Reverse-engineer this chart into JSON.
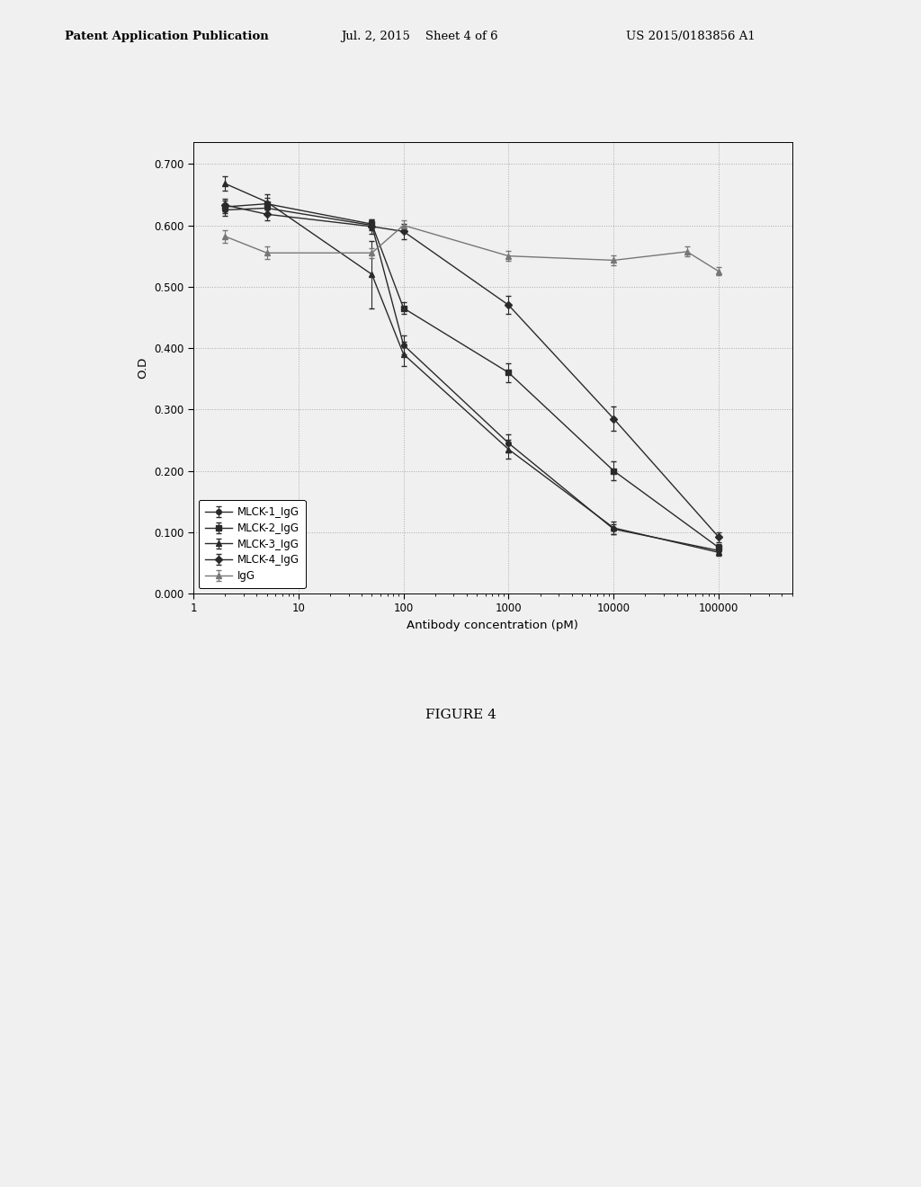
{
  "series": [
    {
      "label": "MLCK-1_IgG",
      "marker": "o",
      "color": "#2a2a2a",
      "x": [
        2,
        5,
        50,
        100,
        1000,
        10000,
        100000
      ],
      "y": [
        0.625,
        0.628,
        0.6,
        0.405,
        0.245,
        0.105,
        0.07
      ],
      "yerr": [
        0.01,
        0.01,
        0.008,
        0.015,
        0.015,
        0.008,
        0.006
      ]
    },
    {
      "label": "MLCK-2_IgG",
      "marker": "s",
      "color": "#2a2a2a",
      "x": [
        2,
        5,
        50,
        100,
        1000,
        10000,
        100000
      ],
      "y": [
        0.63,
        0.635,
        0.602,
        0.465,
        0.36,
        0.2,
        0.075
      ],
      "yerr": [
        0.01,
        0.01,
        0.008,
        0.01,
        0.015,
        0.015,
        0.006
      ]
    },
    {
      "label": "MLCK-3_IgG",
      "marker": "^",
      "color": "#2a2a2a",
      "x": [
        2,
        5,
        50,
        100,
        1000,
        10000,
        100000
      ],
      "y": [
        0.668,
        0.638,
        0.52,
        0.39,
        0.235,
        0.107,
        0.067
      ],
      "yerr": [
        0.012,
        0.012,
        0.055,
        0.02,
        0.015,
        0.01,
        0.006
      ]
    },
    {
      "label": "MLCK-4_IgG",
      "marker": "D",
      "color": "#2a2a2a",
      "x": [
        2,
        5,
        50,
        100,
        1000,
        10000,
        100000
      ],
      "y": [
        0.633,
        0.618,
        0.598,
        0.59,
        0.47,
        0.285,
        0.092
      ],
      "yerr": [
        0.01,
        0.01,
        0.012,
        0.012,
        0.015,
        0.02,
        0.008
      ]
    },
    {
      "label": "IgG",
      "marker": "^",
      "color": "#777777",
      "x": [
        2,
        5,
        50,
        100,
        1000,
        10000,
        50000,
        100000
      ],
      "y": [
        0.582,
        0.555,
        0.555,
        0.6,
        0.55,
        0.543,
        0.557,
        0.525
      ],
      "yerr": [
        0.01,
        0.01,
        0.008,
        0.008,
        0.008,
        0.008,
        0.008,
        0.007
      ]
    }
  ],
  "xlabel": "Antibody concentration (pM)",
  "ylabel": "O.D",
  "ylim": [
    0.0,
    0.735
  ],
  "xlim": [
    1,
    500000
  ],
  "yticks": [
    0.0,
    0.1,
    0.2,
    0.3,
    0.4,
    0.5,
    0.6,
    0.7
  ],
  "figure_caption": "FIGURE 4",
  "header_left": "Patent Application Publication",
  "header_center": "Jul. 2, 2015    Sheet 4 of 6",
  "header_right": "US 2015/0183856 A1",
  "background_color": "#f0f0f0",
  "plot_bg": "#f0f0f0",
  "grid_color": "#aaaaaa",
  "legend_loc": "lower left"
}
